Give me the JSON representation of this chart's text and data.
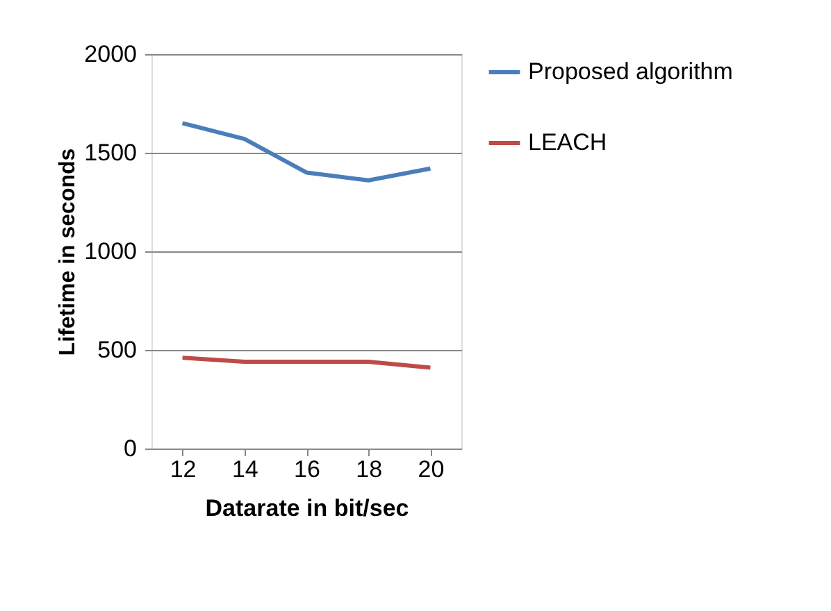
{
  "chart_data": {
    "type": "line",
    "xlabel": "Datarate in bit/sec",
    "ylabel": "Lifetime in seconds",
    "categories": [
      "12",
      "14",
      "16",
      "18",
      "20"
    ],
    "series": [
      {
        "name": "Proposed algorithm",
        "color": "#4a7ebb",
        "values": [
          1650,
          1570,
          1400,
          1360,
          1420
        ]
      },
      {
        "name": "LEACH",
        "color": "#be4b48",
        "values": [
          460,
          440,
          440,
          440,
          410
        ]
      }
    ],
    "ylim": [
      0,
      2000
    ],
    "yticks": [
      0,
      500,
      1000,
      1500,
      2000
    ],
    "grid": "y",
    "legend": "right",
    "marker": "none",
    "line_style": "solid"
  }
}
